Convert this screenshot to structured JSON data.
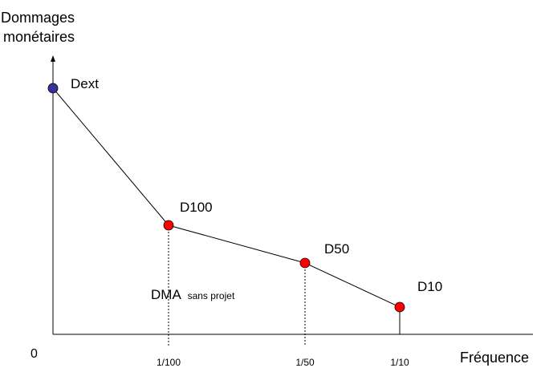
{
  "y_axis_label": [
    "Dommages",
    "monétaires"
  ],
  "x_axis_label": "Fréquence",
  "origin_label": "0",
  "ticks": [
    "1/100",
    "1/50",
    "1/10"
  ],
  "points": [
    {
      "label": "Dext",
      "color": "#333399"
    },
    {
      "label": "D100",
      "color": "#ff0000"
    },
    {
      "label": "D50",
      "color": "#ff0000"
    },
    {
      "label": "D10",
      "color": "#ff0000"
    }
  ],
  "annotation": {
    "main": "DMA",
    "sub": "sans projet"
  }
}
